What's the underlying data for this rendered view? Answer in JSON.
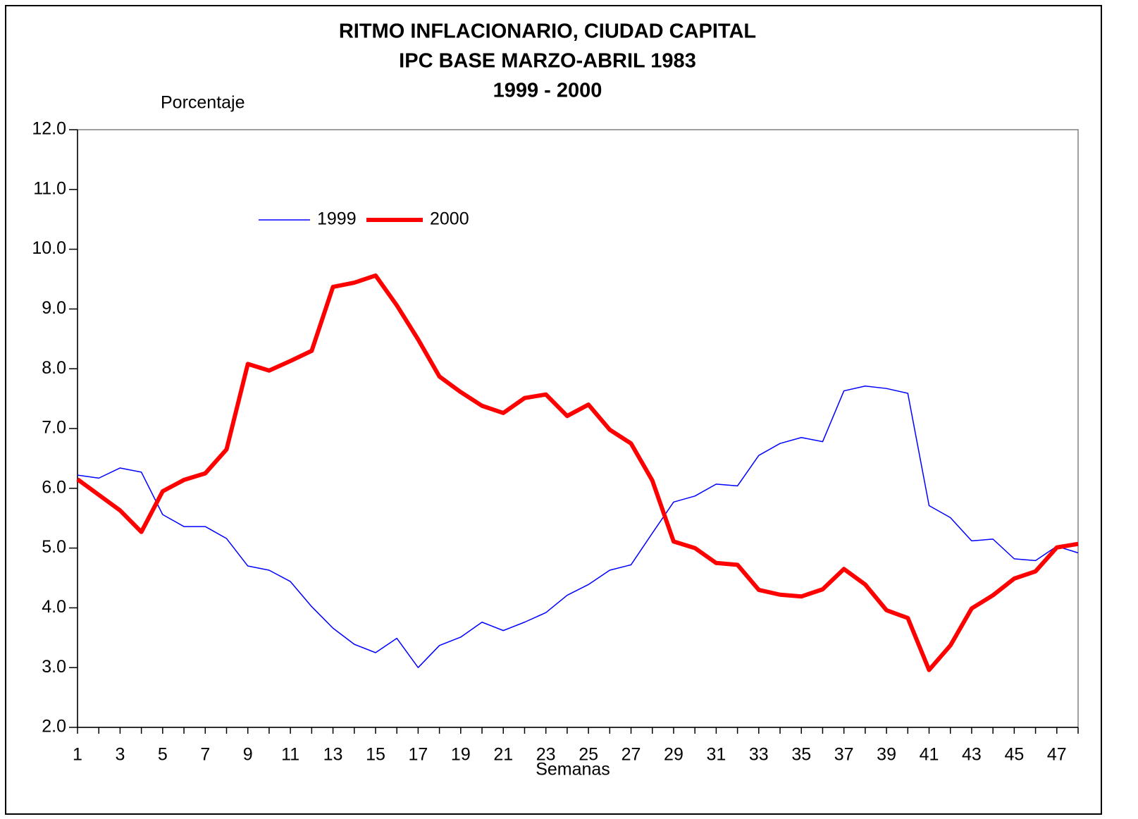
{
  "chart_data": {
    "type": "line",
    "title": [
      "RITMO INFLACIONARIO, CIUDAD CAPITAL",
      "IPC BASE MARZO-ABRIL 1983",
      "1999 - 2000"
    ],
    "y_label": "Porcentaje",
    "x_label": "Semanas",
    "categories": [
      "1",
      null,
      "3",
      null,
      "5",
      null,
      "7",
      null,
      "9",
      null,
      "11",
      null,
      "13",
      null,
      "15",
      null,
      "17",
      null,
      "19",
      null,
      "21",
      null,
      "23",
      null,
      "25",
      null,
      "27",
      null,
      "29",
      null,
      "31",
      null,
      "33",
      null,
      "35",
      null,
      "37",
      null,
      "39",
      null,
      "41",
      null,
      "43",
      null,
      "45",
      null,
      "47",
      null
    ],
    "series": [
      {
        "name": "1999",
        "color": "#0000ff",
        "values": [
          6.22,
          6.17,
          6.34,
          6.27,
          5.56,
          5.36,
          5.36,
          5.16,
          4.7,
          4.63,
          4.44,
          4.02,
          3.66,
          3.39,
          3.25,
          3.49,
          3.0,
          3.37,
          3.51,
          3.76,
          3.62,
          3.76,
          3.92,
          4.21,
          4.39,
          4.63,
          4.72,
          5.25,
          5.77,
          5.87,
          6.07,
          6.04,
          6.55,
          6.75,
          6.85,
          6.78,
          7.63,
          7.71,
          7.67,
          7.59,
          5.71,
          5.51,
          5.12,
          5.15,
          4.82,
          4.79,
          5.03,
          4.92
        ]
      },
      {
        "name": "2000",
        "color": "#ff0000",
        "values": [
          6.15,
          5.89,
          5.63,
          5.27,
          5.95,
          6.14,
          6.25,
          6.65,
          8.08,
          7.97,
          8.13,
          8.3,
          9.37,
          9.44,
          9.56,
          9.06,
          8.49,
          7.87,
          7.61,
          7.38,
          7.26,
          7.51,
          7.57,
          7.21,
          7.4,
          6.98,
          6.75,
          6.13,
          5.11,
          5.0,
          4.75,
          4.72,
          4.3,
          4.22,
          4.19,
          4.31,
          4.65,
          4.39,
          3.96,
          3.83,
          2.96,
          3.37,
          3.99,
          4.21,
          4.49,
          4.61,
          5.01,
          5.07
        ]
      }
    ],
    "ylim": [
      2,
      12
    ],
    "yticks": [
      {
        "value": 2,
        "label": "2.0"
      },
      {
        "value": 3,
        "label": "3.0"
      },
      {
        "value": 4,
        "label": "4.0"
      },
      {
        "value": 5,
        "label": "5.0"
      },
      {
        "value": 6,
        "label": "6.0"
      },
      {
        "value": 7,
        "label": "7.0"
      },
      {
        "value": 8,
        "label": "8.0"
      },
      {
        "value": 9,
        "label": "9.0"
      },
      {
        "value": 10,
        "label": "10.0"
      },
      {
        "value": 11,
        "label": "11.0"
      },
      {
        "value": 12,
        "label": "12.0"
      }
    ],
    "grid": false
  }
}
